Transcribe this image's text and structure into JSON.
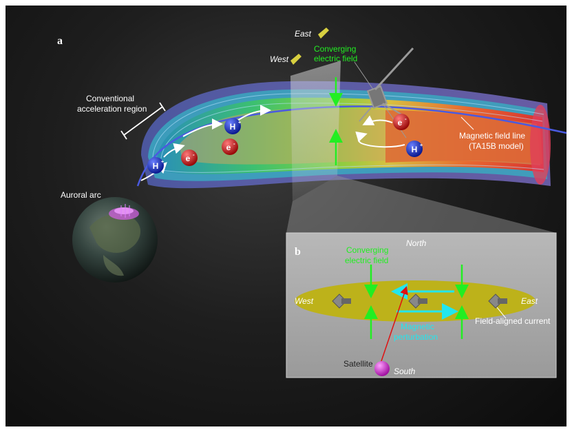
{
  "panel_a": {
    "label": "a",
    "east": "East",
    "west": "West",
    "converging_1": "Converging",
    "converging_2": "electric field",
    "conventional_1": "Conventional",
    "conventional_2": "acceleration region",
    "auroral_arc": "Auroral arc",
    "field_line_1": "Magnetic field line",
    "field_line_2": "(TA15B model)",
    "proton": "H",
    "proton_sup": "+",
    "electron": "e",
    "electron_sup": "-"
  },
  "panel_b": {
    "label": "b",
    "north": "North",
    "south": "South",
    "west": "West",
    "east": "East",
    "converging_1": "Converging",
    "converging_2": "electric field",
    "magnetic_1": "Magnetic",
    "magnetic_2": "perturbation",
    "fac": "Field-aligned current",
    "satellite": "Satellite"
  },
  "colors": {
    "green": "#22ee22",
    "cyan": "#22e6ee",
    "proton": "#1a2fc8",
    "electron": "#d01818",
    "field_line": "#4a5ae0",
    "satellite": "#e040e0"
  }
}
